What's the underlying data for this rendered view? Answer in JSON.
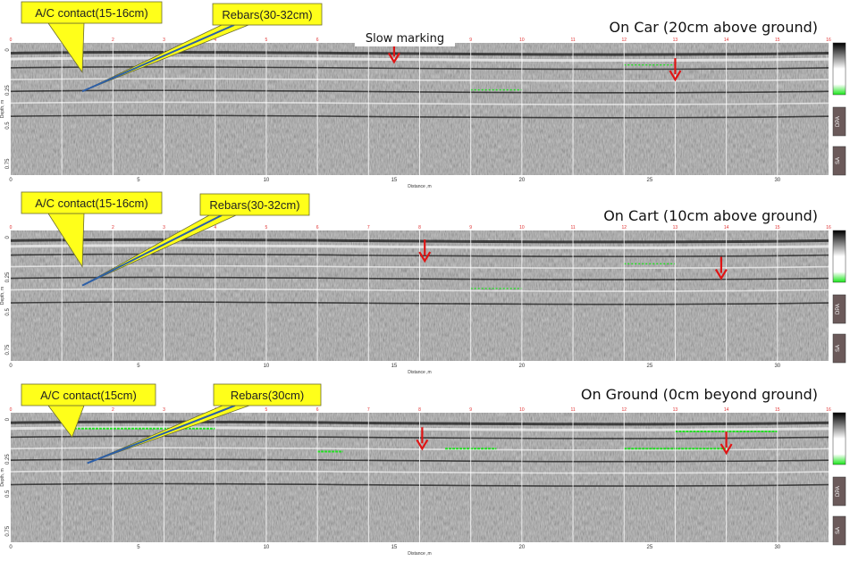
{
  "chart_data": [
    {
      "type": "heatmap",
      "title": "On Car (20cm above ground)",
      "xlabel": "Distance ,m",
      "ylabel": "Depth, m",
      "xlim": [
        0,
        32
      ],
      "ylim": [
        0.85,
        -0.05
      ],
      "x_ticks": [
        "0",
        "5",
        "10",
        "15",
        "20",
        "25",
        "30"
      ],
      "y_ticks": [
        "0",
        "0.25",
        "0.5",
        "0.75"
      ],
      "marker_ticks": [
        "0",
        "1",
        "2",
        "3",
        "4",
        "5",
        "6",
        "7",
        "8",
        "9",
        "10",
        "11",
        "12",
        "13",
        "14",
        "15",
        "16"
      ],
      "annotations": [
        {
          "text": "A/C contact(15-16cm)",
          "x": 2.8,
          "y": 0.15
        },
        {
          "text": "Rebars(30-32cm)",
          "x": 2.8,
          "y": 0.28
        }
      ],
      "note": "Slow marking",
      "arrows": [
        {
          "x": 15.0,
          "y": 0.08
        },
        {
          "x": 26.0,
          "y": 0.2
        }
      ],
      "colorbar_labels": [
        "DPA",
        "SA"
      ]
    },
    {
      "type": "heatmap",
      "title": "On Cart (10cm above ground)",
      "xlabel": "Distance ,m",
      "ylabel": "Depth, m",
      "xlim": [
        0,
        32
      ],
      "ylim": [
        0.85,
        -0.05
      ],
      "x_ticks": [
        "0",
        "5",
        "10",
        "15",
        "20",
        "25",
        "30"
      ],
      "y_ticks": [
        "0",
        "0.25",
        "0.5",
        "0.75"
      ],
      "marker_ticks": [
        "0",
        "1",
        "2",
        "3",
        "4",
        "5",
        "6",
        "7",
        "8",
        "9",
        "10",
        "11",
        "12",
        "13",
        "14",
        "15",
        "16"
      ],
      "annotations": [
        {
          "text": "A/C contact(15-16cm)",
          "x": 2.8,
          "y": 0.2
        },
        {
          "text": "Rebars(30-32cm)",
          "x": 2.8,
          "y": 0.33
        }
      ],
      "arrows": [
        {
          "x": 16.2,
          "y": 0.16
        },
        {
          "x": 27.8,
          "y": 0.28
        }
      ],
      "colorbar_labels": [
        "DPA",
        "SA"
      ]
    },
    {
      "type": "heatmap",
      "title": "On Ground (0cm beyond ground)",
      "xlabel": "Distance ,m",
      "ylabel": "Depth, m",
      "xlim": [
        0,
        32
      ],
      "ylim": [
        0.85,
        -0.05
      ],
      "x_ticks": [
        "0",
        "5",
        "10",
        "15",
        "20",
        "25",
        "30"
      ],
      "y_ticks": [
        "0",
        "0.25",
        "0.5",
        "0.75"
      ],
      "marker_ticks": [
        "0",
        "1",
        "2",
        "3",
        "4",
        "5",
        "6",
        "7",
        "8",
        "9",
        "10",
        "11",
        "12",
        "13",
        "14",
        "15",
        "16"
      ],
      "annotations": [
        {
          "text": "A/C contact(15cm)",
          "x": 2.4,
          "y": 0.12
        },
        {
          "text": "Rebars(30cm)",
          "x": 3.0,
          "y": 0.3
        }
      ],
      "arrows": [
        {
          "x": 16.1,
          "y": 0.2
        },
        {
          "x": 28.0,
          "y": 0.23
        }
      ],
      "colorbar_labels": [
        "DPA",
        "SA"
      ]
    }
  ]
}
